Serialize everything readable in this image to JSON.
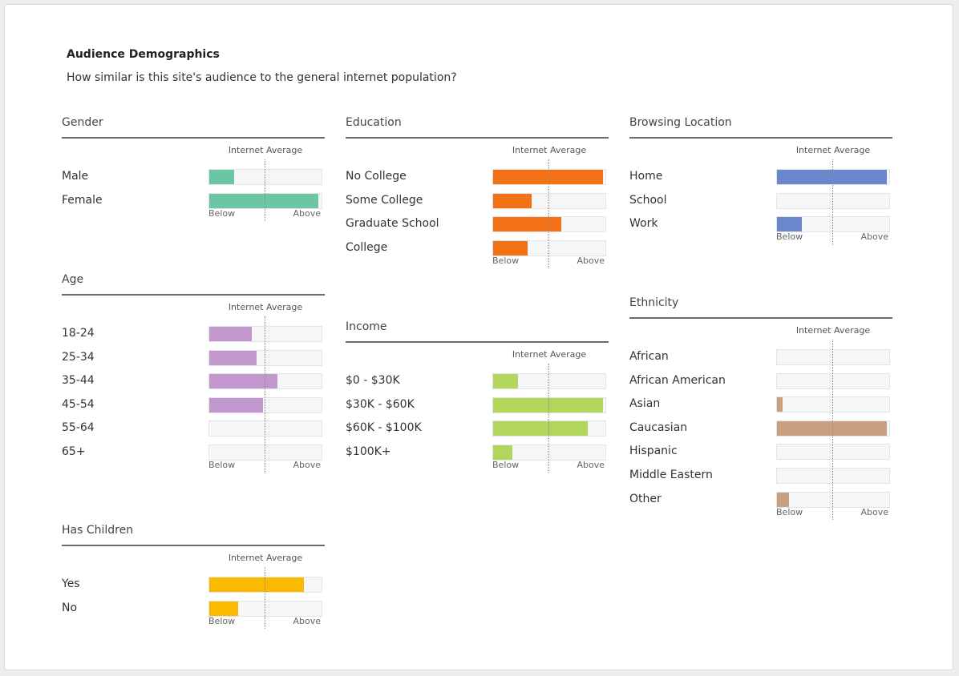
{
  "header": {
    "title": "Audience Demographics",
    "subtitle": "How similar is this site's audience to the general internet population?"
  },
  "labels": {
    "internet_average": "Internet Average",
    "below": "Below",
    "above": "Above"
  },
  "chart_data": [
    {
      "type": "bar",
      "title": "Gender",
      "color": "#6cc6a4",
      "categories": [
        "Male",
        "Female"
      ],
      "values": [
        0.22,
        0.97
      ],
      "baseline": 0.5
    },
    {
      "type": "bar",
      "title": "Age",
      "color": "#c197cd",
      "categories": [
        "18-24",
        "25-34",
        "35-44",
        "45-54",
        "55-64",
        "65+"
      ],
      "values": [
        0.38,
        0.42,
        0.61,
        0.48,
        0.0,
        0.0
      ],
      "baseline": 0.5
    },
    {
      "type": "bar",
      "title": "Has Children",
      "color": "#fbba00",
      "categories": [
        "Yes",
        "No"
      ],
      "values": [
        0.84,
        0.26
      ],
      "baseline": 0.5
    },
    {
      "type": "bar",
      "title": "Education",
      "color": "#f47216",
      "categories": [
        "No College",
        "Some College",
        "Graduate School",
        "College"
      ],
      "values": [
        0.98,
        0.34,
        0.61,
        0.31
      ],
      "baseline": 0.5
    },
    {
      "type": "bar",
      "title": "Income",
      "color": "#b2d65c",
      "categories": [
        "$0 - $30K",
        "$30K - $60K",
        "$60K - $100K",
        "$100K+"
      ],
      "values": [
        0.22,
        0.98,
        0.84,
        0.17
      ],
      "baseline": 0.5
    },
    {
      "type": "bar",
      "title": "Browsing Location",
      "color": "#6a87cb",
      "categories": [
        "Home",
        "School",
        "Work"
      ],
      "values": [
        0.98,
        0.0,
        0.22
      ],
      "baseline": 0.5
    },
    {
      "type": "bar",
      "title": "Ethnicity",
      "color": "#c9a182",
      "categories": [
        "African",
        "African American",
        "Asian",
        "Caucasian",
        "Hispanic",
        "Middle Eastern",
        "Other"
      ],
      "values": [
        0.0,
        0.0,
        0.05,
        0.98,
        0.0,
        0.0,
        0.11
      ],
      "baseline": 0.5
    }
  ]
}
